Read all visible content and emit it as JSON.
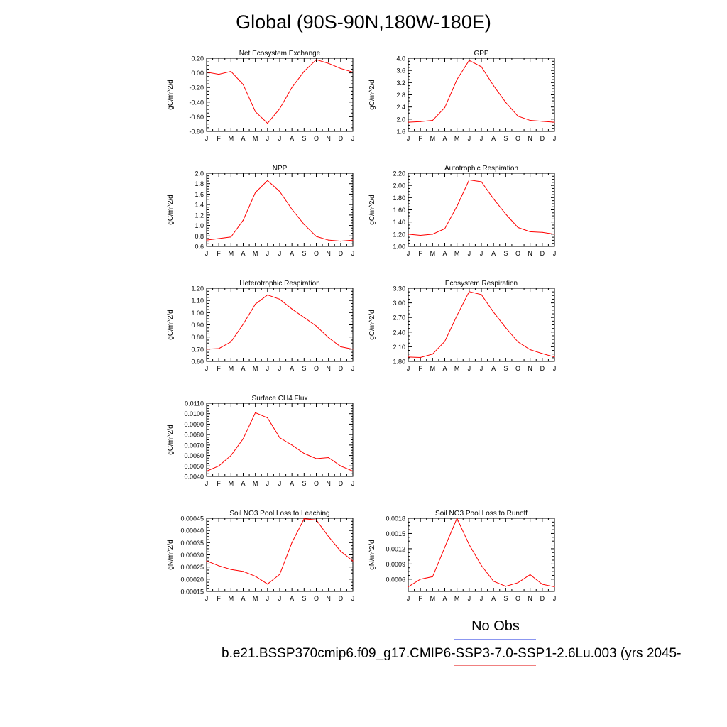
{
  "title": "Global (90S-90N,180W-180E)",
  "legend": {
    "obs_label": "No Obs",
    "obs_color": "#8b96f0",
    "case_label": "b.e21.BSSP370cmip6.f09_g17.CMIP6-SSP3-7.0-SSP1-2.6Lu.003 (yrs 2045-",
    "case_color": "#f08080"
  },
  "line_color": "#ff0000",
  "chart_data": [
    {
      "type": "line",
      "title": "Net Ecosystem Exchange",
      "ylabel": "gC/m^2/d",
      "categories": [
        "J",
        "F",
        "M",
        "A",
        "M",
        "J",
        "J",
        "A",
        "S",
        "O",
        "N",
        "D",
        "J"
      ],
      "ylim": [
        -0.8,
        0.2
      ],
      "yticks": [
        "0.20",
        "0.00",
        "-0.20",
        "-0.40",
        "-0.60",
        "-0.80"
      ],
      "ytick_values": [
        0.2,
        0.0,
        -0.2,
        -0.4,
        -0.6,
        -0.8
      ],
      "values": [
        0.01,
        -0.02,
        0.02,
        -0.16,
        -0.53,
        -0.69,
        -0.49,
        -0.2,
        0.02,
        0.18,
        0.13,
        0.06,
        0.01
      ]
    },
    {
      "type": "line",
      "title": "GPP",
      "ylabel": "gC/m^2/d",
      "categories": [
        "J",
        "F",
        "M",
        "A",
        "M",
        "J",
        "J",
        "A",
        "S",
        "O",
        "N",
        "D",
        "J"
      ],
      "ylim": [
        1.6,
        4.0
      ],
      "yticks": [
        "4.0",
        "3.6",
        "3.2",
        "2.8",
        "2.4",
        "2.0",
        "1.6"
      ],
      "ytick_values": [
        4.0,
        3.6,
        3.2,
        2.8,
        2.4,
        2.0,
        1.6
      ],
      "values": [
        1.9,
        1.92,
        1.96,
        2.38,
        3.3,
        3.93,
        3.72,
        3.1,
        2.55,
        2.1,
        1.96,
        1.93,
        1.9
      ]
    },
    {
      "type": "line",
      "title": "NPP",
      "ylabel": "gC/m^2/d",
      "categories": [
        "J",
        "F",
        "M",
        "A",
        "M",
        "J",
        "J",
        "A",
        "S",
        "O",
        "N",
        "D",
        "J"
      ],
      "ylim": [
        0.6,
        2.0
      ],
      "yticks": [
        "2.0",
        "1.8",
        "1.6",
        "1.4",
        "1.2",
        "1.0",
        "0.8",
        "0.6"
      ],
      "ytick_values": [
        2.0,
        1.8,
        1.6,
        1.4,
        1.2,
        1.0,
        0.8,
        0.6
      ],
      "values": [
        0.72,
        0.75,
        0.78,
        1.1,
        1.63,
        1.86,
        1.65,
        1.31,
        1.02,
        0.79,
        0.72,
        0.7,
        0.72
      ]
    },
    {
      "type": "line",
      "title": "Autotrophic Respiration",
      "ylabel": "gC/m^2/d",
      "categories": [
        "J",
        "F",
        "M",
        "A",
        "M",
        "J",
        "J",
        "A",
        "S",
        "O",
        "N",
        "D",
        "J"
      ],
      "ylim": [
        1.0,
        2.2
      ],
      "yticks": [
        "2.20",
        "2.00",
        "1.80",
        "1.60",
        "1.40",
        "1.20",
        "1.00"
      ],
      "ytick_values": [
        2.2,
        2.0,
        1.8,
        1.6,
        1.4,
        1.2,
        1.0
      ],
      "values": [
        1.2,
        1.18,
        1.2,
        1.29,
        1.66,
        2.09,
        2.06,
        1.78,
        1.53,
        1.31,
        1.24,
        1.23,
        1.2
      ]
    },
    {
      "type": "line",
      "title": "Heterotrophic Respiration",
      "ylabel": "gC/m^2/d",
      "categories": [
        "J",
        "F",
        "M",
        "A",
        "M",
        "J",
        "J",
        "A",
        "S",
        "O",
        "N",
        "D",
        "J"
      ],
      "ylim": [
        0.6,
        1.2
      ],
      "yticks": [
        "1.20",
        "1.10",
        "1.00",
        "0.90",
        "0.80",
        "0.70",
        "0.60"
      ],
      "ytick_values": [
        1.2,
        1.1,
        1.0,
        0.9,
        0.8,
        0.7,
        0.6
      ],
      "values": [
        0.7,
        0.705,
        0.76,
        0.905,
        1.07,
        1.145,
        1.11,
        1.03,
        0.96,
        0.89,
        0.795,
        0.72,
        0.7
      ]
    },
    {
      "type": "line",
      "title": "Ecosystem Respiration",
      "ylabel": "gC/m^2/d",
      "categories": [
        "J",
        "F",
        "M",
        "A",
        "M",
        "J",
        "J",
        "A",
        "S",
        "O",
        "N",
        "D",
        "J"
      ],
      "ylim": [
        1.8,
        3.3
      ],
      "yticks": [
        "3.30",
        "3.00",
        "2.70",
        "2.40",
        "2.10",
        "1.80"
      ],
      "ytick_values": [
        3.3,
        3.0,
        2.7,
        2.4,
        2.1,
        1.8
      ],
      "values": [
        1.89,
        1.88,
        1.95,
        2.21,
        2.74,
        3.23,
        3.17,
        2.81,
        2.49,
        2.2,
        2.04,
        1.96,
        1.89
      ]
    },
    {
      "type": "line",
      "title": "Surface CH4 Flux",
      "ylabel": "gC/m^2/d",
      "categories": [
        "J",
        "F",
        "M",
        "A",
        "M",
        "J",
        "J",
        "A",
        "S",
        "O",
        "N",
        "D",
        "J"
      ],
      "ylim": [
        0.004,
        0.011
      ],
      "yticks": [
        "0.0110",
        "0.0100",
        "0.0090",
        "0.0080",
        "0.0070",
        "0.0060",
        "0.0050",
        "0.0040"
      ],
      "ytick_values": [
        0.011,
        0.01,
        0.009,
        0.008,
        0.007,
        0.006,
        0.005,
        0.004
      ],
      "values": [
        0.0045,
        0.005,
        0.006,
        0.0076,
        0.0101,
        0.0096,
        0.0077,
        0.007,
        0.0062,
        0.0057,
        0.0058,
        0.005,
        0.0045
      ]
    },
    {
      "type": "line",
      "title": "Soil NO3 Pool Loss to Leaching",
      "ylabel": "gN/m^2/d",
      "categories": [
        "J",
        "F",
        "M",
        "A",
        "M",
        "J",
        "J",
        "A",
        "S",
        "O",
        "N",
        "D",
        "J"
      ],
      "ylim": [
        0.00015,
        0.00045
      ],
      "yticks": [
        "0.00045",
        "0.00040",
        "0.00035",
        "0.00030",
        "0.00025",
        "0.00020",
        "0.00015"
      ],
      "ytick_values": [
        0.00045,
        0.0004,
        0.00035,
        0.0003,
        0.00025,
        0.0002,
        0.00015
      ],
      "values": [
        0.000275,
        0.000255,
        0.00024,
        0.000232,
        0.000212,
        0.00018,
        0.00022,
        0.00035,
        0.000448,
        0.000443,
        0.000375,
        0.000315,
        0.000275
      ]
    },
    {
      "type": "line",
      "title": "Soil NO3 Pool Loss to Runoff",
      "ylabel": "gN/m^2/d",
      "categories": [
        "J",
        "F",
        "M",
        "A",
        "M",
        "J",
        "J",
        "A",
        "S",
        "O",
        "N",
        "D",
        "J"
      ],
      "ylim": [
        0.00036,
        0.0018
      ],
      "yticks": [
        "0.0018",
        "0.0015",
        "0.0012",
        "0.0009",
        "0.0006"
      ],
      "ytick_values": [
        0.0018,
        0.0015,
        0.0012,
        0.0009,
        0.0006
      ],
      "values": [
        0.00045,
        0.0006,
        0.00065,
        0.00123,
        0.0018,
        0.00128,
        0.00087,
        0.00056,
        0.00046,
        0.00053,
        0.00069,
        0.0005,
        0.00045
      ]
    }
  ]
}
